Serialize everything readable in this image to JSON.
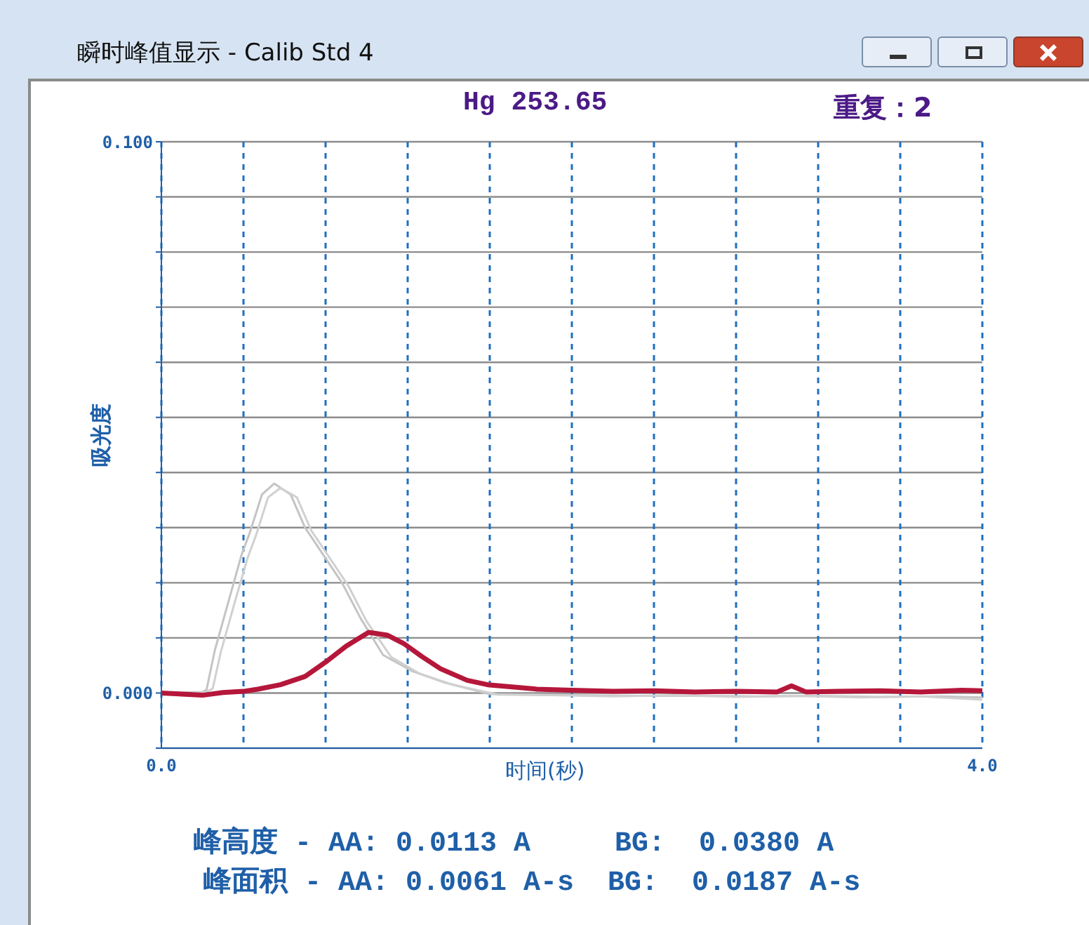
{
  "chart_data": {
    "type": "line",
    "title": "瞬时峰值显示 - Calib Std 4",
    "subtitle": "Hg 253.65",
    "xlabel": "时间(秒)",
    "ylabel": "吸光度",
    "annotations": [
      "重复：2",
      "峰高度 - AA: 0.0113 A     BG:  0.0380 A",
      "峰面积 - AA: 0.0061 A-s  BG:  0.0187 A-s"
    ],
    "series": [
      {
        "color": "#c4c4c4",
        "x": [
          0,
          0.1,
          0.2,
          0.22,
          0.26,
          0.33,
          0.39,
          0.43,
          0.49,
          0.55,
          0.63,
          0.7,
          0.79,
          0.88,
          0.97,
          1.08,
          1.22,
          1.38,
          1.6,
          1.8,
          2.0,
          2.3,
          2.6,
          2.9,
          3.2,
          3.5,
          3.8,
          4.0
        ],
        "values": [
          0,
          0.0001,
          0.0002,
          0.0006,
          0.0077,
          0.017,
          0.025,
          0.029,
          0.036,
          0.038,
          0.036,
          0.03,
          0.025,
          0.02,
          0.0136,
          0.0069,
          0.004,
          0.0019,
          -0.0002,
          -0.0003,
          -0.0004,
          -0.0005,
          -0.0005,
          -0.0006,
          -0.0005,
          -0.0007,
          -0.0006,
          -0.0008
        ]
      },
      {
        "color": "#d0d0d0",
        "x": [
          0,
          0.1,
          0.22,
          0.25,
          0.29,
          0.36,
          0.42,
          0.46,
          0.52,
          0.58,
          0.66,
          0.73,
          0.82,
          0.91,
          1.0,
          1.12,
          1.26,
          1.42,
          1.64,
          1.9,
          2.2,
          2.5,
          2.8,
          3.1,
          3.4,
          3.7,
          4.0
        ],
        "values": [
          0,
          -0.0001,
          0.0002,
          0.0008,
          0.0075,
          0.0168,
          0.0245,
          0.0285,
          0.0355,
          0.0372,
          0.0355,
          0.0295,
          0.0245,
          0.0195,
          0.013,
          0.0065,
          0.0035,
          0.0015,
          -0.0003,
          -0.0004,
          -0.0006,
          -0.0004,
          -0.0007,
          -0.0005,
          -0.0008,
          -0.0006,
          -0.0012
        ]
      },
      {
        "color": "#b5173a",
        "x": [
          0,
          0.1,
          0.2,
          0.3,
          0.4,
          0.47,
          0.58,
          0.7,
          0.8,
          0.9,
          1.01,
          1.1,
          1.18,
          1.27,
          1.36,
          1.49,
          1.59,
          1.83,
          2.0,
          2.2,
          2.4,
          2.6,
          2.8,
          3.0,
          3.07,
          3.14,
          3.3,
          3.5,
          3.7,
          3.9,
          4.0
        ],
        "values": [
          0,
          -0.0002,
          -0.0004,
          0.0001,
          0.0003,
          0.0007,
          0.0015,
          0.003,
          0.0056,
          0.0085,
          0.011,
          0.0105,
          0.009,
          0.0066,
          0.0044,
          0.0023,
          0.0015,
          0.0007,
          0.0005,
          0.0003,
          0.0004,
          0.0002,
          0.0003,
          0.0002,
          0.0013,
          0.0002,
          0.0003,
          0.0004,
          0.0002,
          0.0005,
          0.0004
        ]
      }
    ],
    "xlim": [
      0,
      4
    ],
    "xticks": [
      {
        "value": 0,
        "label": "0.0"
      },
      {
        "value": 0.4,
        "label": null
      },
      {
        "value": 0.8,
        "label": null
      },
      {
        "value": 1.2,
        "label": null
      },
      {
        "value": 1.6,
        "label": null
      },
      {
        "value": 2,
        "label": null
      },
      {
        "value": 2.4,
        "label": null
      },
      {
        "value": 2.8,
        "label": null
      },
      {
        "value": 3.2,
        "label": null
      },
      {
        "value": 3.6,
        "label": null
      },
      {
        "value": 4,
        "label": "4.0"
      }
    ],
    "ylim": [
      -0.01,
      0.1
    ],
    "yticks": [
      {
        "value": -0.01,
        "label": null
      },
      {
        "value": 0,
        "label": "0.000"
      },
      {
        "value": 0.01,
        "label": null
      },
      {
        "value": 0.02,
        "label": null
      },
      {
        "value": 0.03,
        "label": null
      },
      {
        "value": 0.04,
        "label": null
      },
      {
        "value": 0.05,
        "label": null
      },
      {
        "value": 0.06,
        "label": null
      },
      {
        "value": 0.07,
        "label": null
      },
      {
        "value": 0.08,
        "label": null
      },
      {
        "value": 0.09,
        "label": null
      },
      {
        "value": 0.1,
        "label": "0.100"
      }
    ],
    "grid": true,
    "marker": "none",
    "line_style": "solid"
  }
}
